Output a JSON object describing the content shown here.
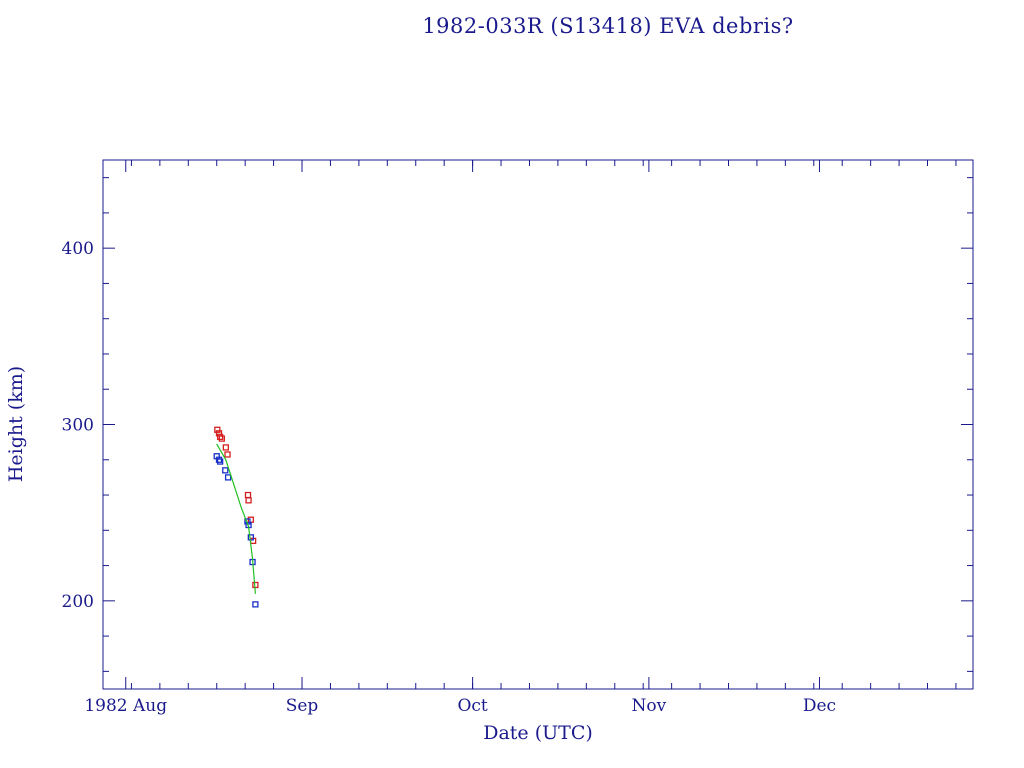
{
  "colors": {
    "axis": "#1a1a8c",
    "apogee": "#d42020",
    "perigee": "#1a30c8",
    "fit": "#22c022"
  },
  "chart_data": {
    "type": "scatter",
    "title": "1982-033R (S13418) EVA debris?",
    "xlabel": "Date (UTC)",
    "ylabel": "Height (km)",
    "x_ticks": [
      "1982 Aug",
      "Sep",
      "Oct",
      "Nov",
      "Dec"
    ],
    "y_ticks": [
      200,
      300,
      400
    ],
    "ylim": [
      150,
      450
    ],
    "xlim": [
      "1982-07-28",
      "1982-12-28"
    ],
    "grid": false,
    "series": [
      {
        "color": "#d42020",
        "points": [
          {
            "x": "1982-08-17.1",
            "y": 297
          },
          {
            "x": "1982-08-17.4",
            "y": 295
          },
          {
            "x": "1982-08-17.6",
            "y": 293
          },
          {
            "x": "1982-08-17.9",
            "y": 292
          },
          {
            "x": "1982-08-18.6",
            "y": 287
          },
          {
            "x": "1982-08-18.9",
            "y": 283
          },
          {
            "x": "1982-08-22.5",
            "y": 260
          },
          {
            "x": "1982-08-22.6",
            "y": 257
          },
          {
            "x": "1982-08-23.0",
            "y": 246
          },
          {
            "x": "1982-08-23.4",
            "y": 234
          },
          {
            "x": "1982-08-23.8",
            "y": 209
          }
        ]
      },
      {
        "color": "#1a30c8",
        "points": [
          {
            "x": "1982-08-17.0",
            "y": 282
          },
          {
            "x": "1982-08-17.4",
            "y": 280
          },
          {
            "x": "1982-08-17.6",
            "y": 279
          },
          {
            "x": "1982-08-18.5",
            "y": 274
          },
          {
            "x": "1982-08-19.0",
            "y": 270
          },
          {
            "x": "1982-08-22.4",
            "y": 245
          },
          {
            "x": "1982-08-22.6",
            "y": 243
          },
          {
            "x": "1982-08-23.0",
            "y": 236
          },
          {
            "x": "1982-08-23.3",
            "y": 222
          },
          {
            "x": "1982-08-23.8",
            "y": 198
          }
        ]
      },
      {
        "color": "#22c022",
        "points": [
          {
            "x": "1982-08-17.0",
            "y": 289
          },
          {
            "x": "1982-08-18.6",
            "y": 280
          },
          {
            "x": "1982-08-19.9",
            "y": 267
          },
          {
            "x": "1982-08-21.3",
            "y": 253
          },
          {
            "x": "1982-08-22.6",
            "y": 242
          },
          {
            "x": "1982-08-23.3",
            "y": 224
          },
          {
            "x": "1982-08-23.8",
            "y": 204
          }
        ]
      }
    ]
  }
}
